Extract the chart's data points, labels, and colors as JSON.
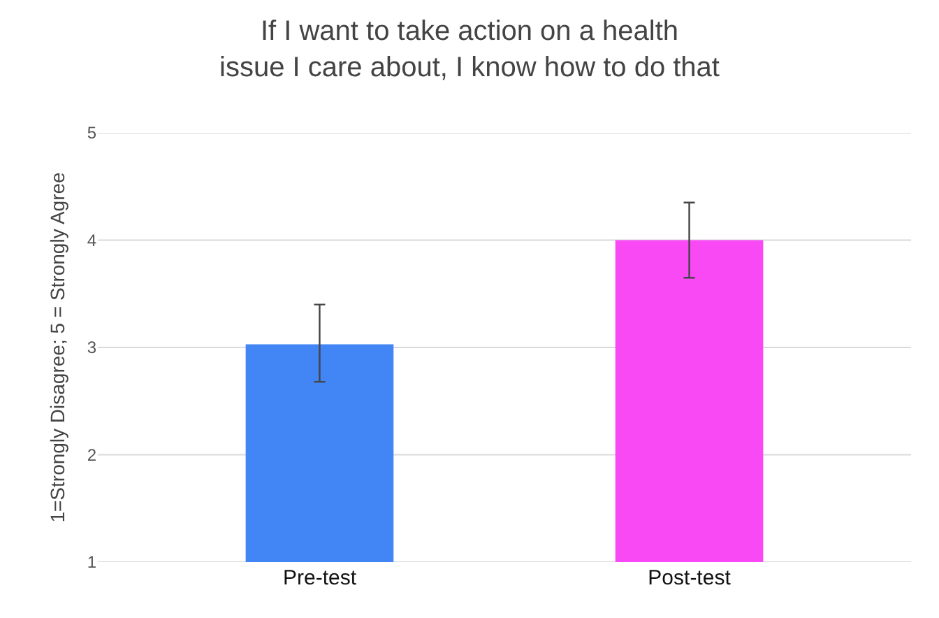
{
  "chart_data": {
    "type": "bar",
    "title": "If I want to take action on a health issue I care about, I know how to do that",
    "ylabel": "1=Strongly Disagree; 5 = Strongly Agree",
    "categories": [
      "Pre-test",
      "Post-test"
    ],
    "values": [
      3.03,
      4.0
    ],
    "colors": [
      "#4285f4",
      "#f849f5"
    ],
    "errors": [
      [
        2.68,
        3.4
      ],
      [
        3.65,
        4.35
      ]
    ],
    "ylim": [
      1,
      5
    ],
    "yticks": [
      1,
      2,
      3,
      4,
      5
    ],
    "grid": "y"
  }
}
